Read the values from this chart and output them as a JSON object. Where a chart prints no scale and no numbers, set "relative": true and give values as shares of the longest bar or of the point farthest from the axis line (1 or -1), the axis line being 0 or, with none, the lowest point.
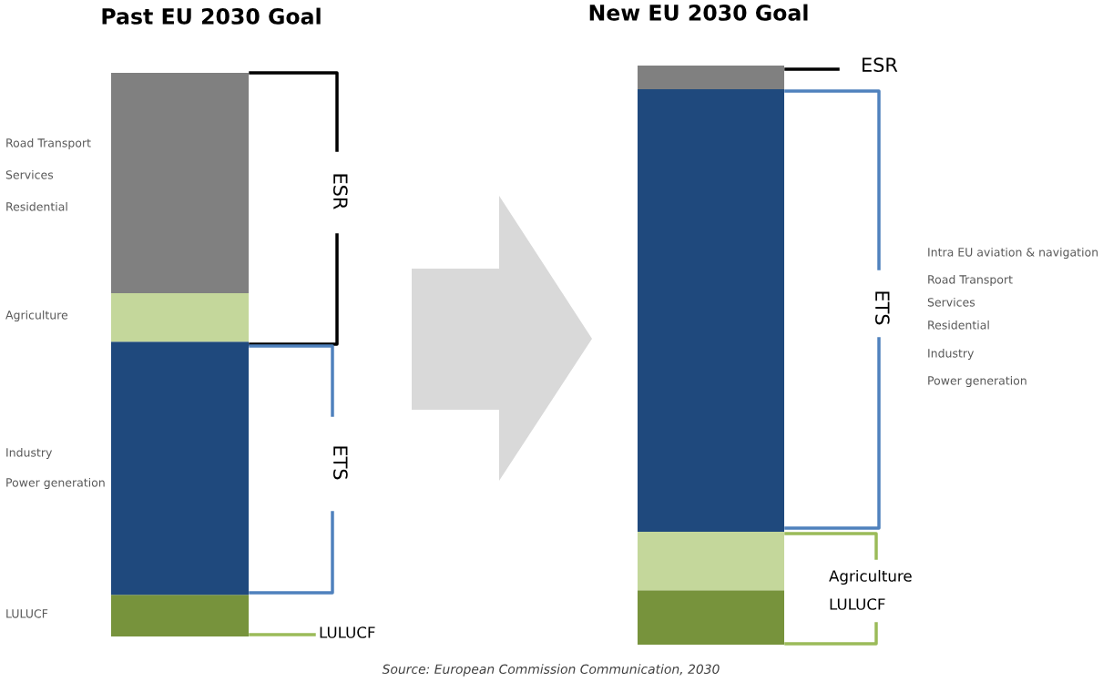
{
  "chart_data": [
    {
      "type": "bar",
      "title": "Past EU 2030 Goal",
      "relative": true,
      "stacked": true,
      "tick_labels": false,
      "categories": [
        null
      ],
      "series": [
        {
          "color": "#77933c",
          "values": [
            0.074
          ]
        },
        {
          "color": "#1f497d",
          "values": [
            0.449
          ]
        },
        {
          "color": "#c4d79b",
          "values": [
            0.086
          ]
        },
        {
          "color": "#808080",
          "values": [
            0.391
          ]
        }
      ],
      "annotations": [
        "Road Transport",
        "Services",
        "Residential",
        "Agriculture",
        "Industry",
        "Power generation",
        "LULUCF",
        "ESR",
        "ETS",
        "LULUCF"
      ]
    },
    {
      "type": "bar",
      "title": "New EU 2030 Goal",
      "relative": true,
      "stacked": true,
      "tick_labels": false,
      "categories": [
        null
      ],
      "series": [
        {
          "color": "#77933c",
          "values": [
            0.094
          ]
        },
        {
          "color": "#c4d79b",
          "values": [
            0.101
          ]
        },
        {
          "color": "#1f497d",
          "values": [
            0.764
          ]
        },
        {
          "color": "#808080",
          "values": [
            0.041
          ]
        }
      ],
      "annotations": [
        "ESR",
        "Intra EU aviation & navigation",
        "Road Transport",
        "Services",
        "Residential",
        "Industry",
        "Power generation",
        "ETS",
        "Agriculture",
        "LULUCF",
        "Source: European Commission Communication, 2030"
      ]
    }
  ]
}
